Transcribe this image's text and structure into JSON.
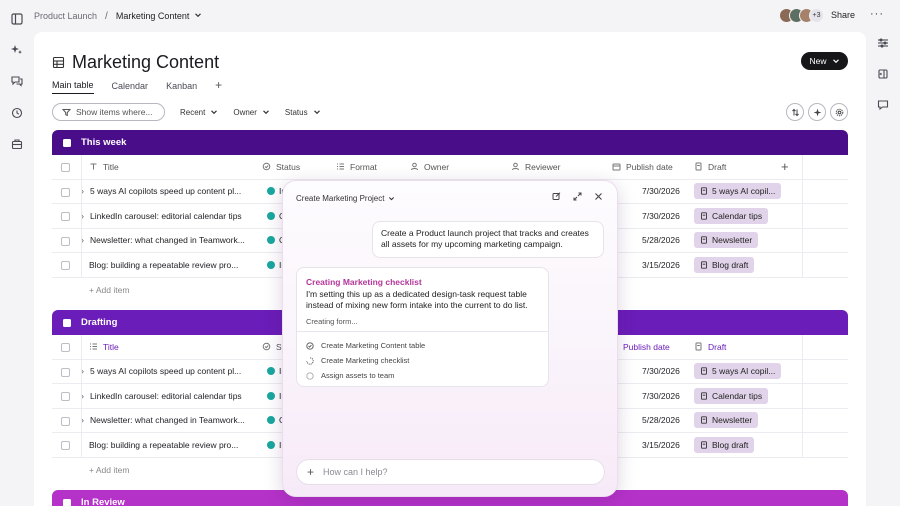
{
  "breadcrumb": {
    "parent": "Product Launch",
    "current": "Marketing Content"
  },
  "topbar": {
    "avatar_more": "+3",
    "share_label": "Share",
    "more_label": "···"
  },
  "page": {
    "title": "Marketing Content",
    "new_label": "New"
  },
  "tabs": [
    {
      "label": "Main table"
    },
    {
      "label": "Calendar"
    },
    {
      "label": "Kanban"
    }
  ],
  "tabs_add": "+",
  "filters": {
    "search_placeholder": "Show items where...",
    "recent": "Recent",
    "owner": "Owner",
    "status": "Status"
  },
  "columns": {
    "title": "Title",
    "status": "Status",
    "format": "Format",
    "owner": "Owner",
    "reviewer": "Reviewer",
    "publish_date": "Publish date",
    "draft": "Draft",
    "add": "+"
  },
  "groups": [
    {
      "name": "This week",
      "color": "#4a0d8a",
      "rows": [
        {
          "title": "5 ways AI copilots speed up content pl...",
          "expand": "›",
          "status_short": "In",
          "date": "7/30/2026",
          "draft": "5 ways AI copil..."
        },
        {
          "title": "LinkedIn carousel: editorial calendar tips",
          "expand": "›",
          "status_short": "C",
          "date": "7/30/2026",
          "draft": "Calendar tips"
        },
        {
          "title": "Newsletter: what changed in Teamwork...",
          "expand": "›",
          "status_short": "C",
          "date": "5/28/2026",
          "draft": "Newsletter"
        },
        {
          "title": "Blog: building a repeatable review pro...",
          "expand": "",
          "status_short": "In",
          "date": "3/15/2026",
          "draft": "Blog draft"
        }
      ],
      "add_item": "+ Add item"
    },
    {
      "name": "Drafting",
      "color": "#6a1db8",
      "rows": [
        {
          "title": "5 ways AI copilots speed up content pl...",
          "expand": "›",
          "status_short": "In",
          "date": "7/30/2026",
          "draft": "5 ways AI copil..."
        },
        {
          "title": "LinkedIn carousel: editorial calendar tips",
          "expand": "›",
          "status_short": "In",
          "date": "7/30/2026",
          "draft": "Calendar tips"
        },
        {
          "title": "Newsletter: what changed in Teamwork...",
          "expand": "›",
          "status_short": "C",
          "date": "5/28/2026",
          "draft": "Newsletter"
        },
        {
          "title": "Blog: building a repeatable review pro...",
          "expand": "",
          "status_short": "In",
          "date": "3/15/2026",
          "draft": "Blog draft"
        }
      ],
      "add_item": "+ Add item",
      "colhead_title": "Title",
      "colhead_status": "St",
      "colhead_publish": "Publish date",
      "colhead_draft": "Draft"
    },
    {
      "name": "In Review",
      "color": "#b532c9"
    }
  ],
  "chat": {
    "header": "Create Marketing Project",
    "user_message": "Create a Product launch project that tracks and creates all assets for my upcoming marketing campaign.",
    "ai_title": "Creating Marketing checklist",
    "ai_body": "I'm setting this up as a dedicated design-task request table instead of mixing new form intake into the current to do list.",
    "ai_status": "Creating form...",
    "steps": [
      {
        "label": "Create Marketing Content table",
        "state": "done"
      },
      {
        "label": "Create Marketing checklist",
        "state": "in-progress"
      },
      {
        "label": "Assign assets to team",
        "state": "pending"
      }
    ],
    "input_placeholder": "How can I help?",
    "input_plus": "+"
  },
  "colors": {
    "accent_dark": "#161618",
    "status_teal": "#1aa7a0",
    "draft_pill": "#e1d4ea",
    "ai_title": "#b3369b"
  }
}
